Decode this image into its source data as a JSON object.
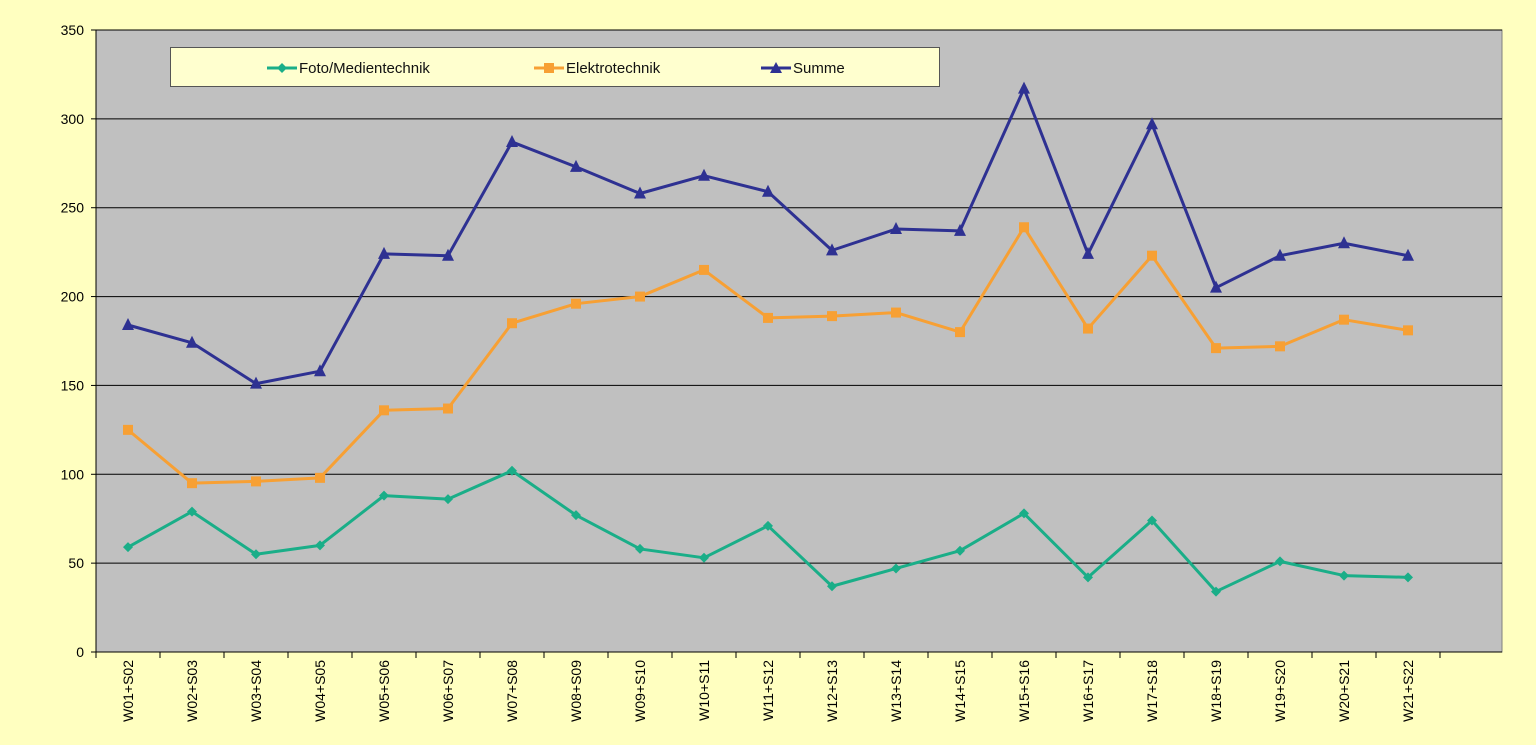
{
  "chart_data": {
    "type": "line",
    "title": "",
    "xlabel": "",
    "ylabel": "",
    "ylim": [
      0,
      350
    ],
    "yticks": [
      0,
      50,
      100,
      150,
      200,
      250,
      300,
      350
    ],
    "grid": true,
    "legend_position": "top",
    "categories": [
      "W01+S02",
      "W02+S03",
      "W03+S04",
      "W04+S05",
      "W05+S06",
      "W06+S07",
      "W07+S08",
      "W08+S09",
      "W09+S10",
      "W10+S11",
      "W11+S12",
      "W12+S13",
      "W13+S14",
      "W14+S15",
      "W15+S16",
      "W16+S17",
      "W17+S18",
      "W18+S19",
      "W19+S20",
      "W20+S21",
      "W21+S22"
    ],
    "series": [
      {
        "name": "Foto/Medientechnik",
        "color": "#1aae88",
        "marker": "diamond",
        "values": [
          59,
          79,
          55,
          60,
          88,
          86,
          102,
          77,
          58,
          53,
          71,
          37,
          47,
          57,
          78,
          42,
          74,
          34,
          51,
          43,
          42
        ]
      },
      {
        "name": "Elektrotechnik",
        "color": "#f7a034",
        "marker": "square",
        "values": [
          125,
          95,
          96,
          98,
          136,
          137,
          185,
          196,
          200,
          215,
          188,
          189,
          191,
          180,
          239,
          182,
          223,
          171,
          172,
          187,
          181
        ]
      },
      {
        "name": "Summe",
        "color": "#2e3192",
        "marker": "triangle",
        "values": [
          184,
          174,
          151,
          158,
          224,
          223,
          287,
          273,
          258,
          268,
          259,
          226,
          238,
          237,
          317,
          224,
          297,
          205,
          223,
          230,
          223
        ]
      }
    ]
  }
}
